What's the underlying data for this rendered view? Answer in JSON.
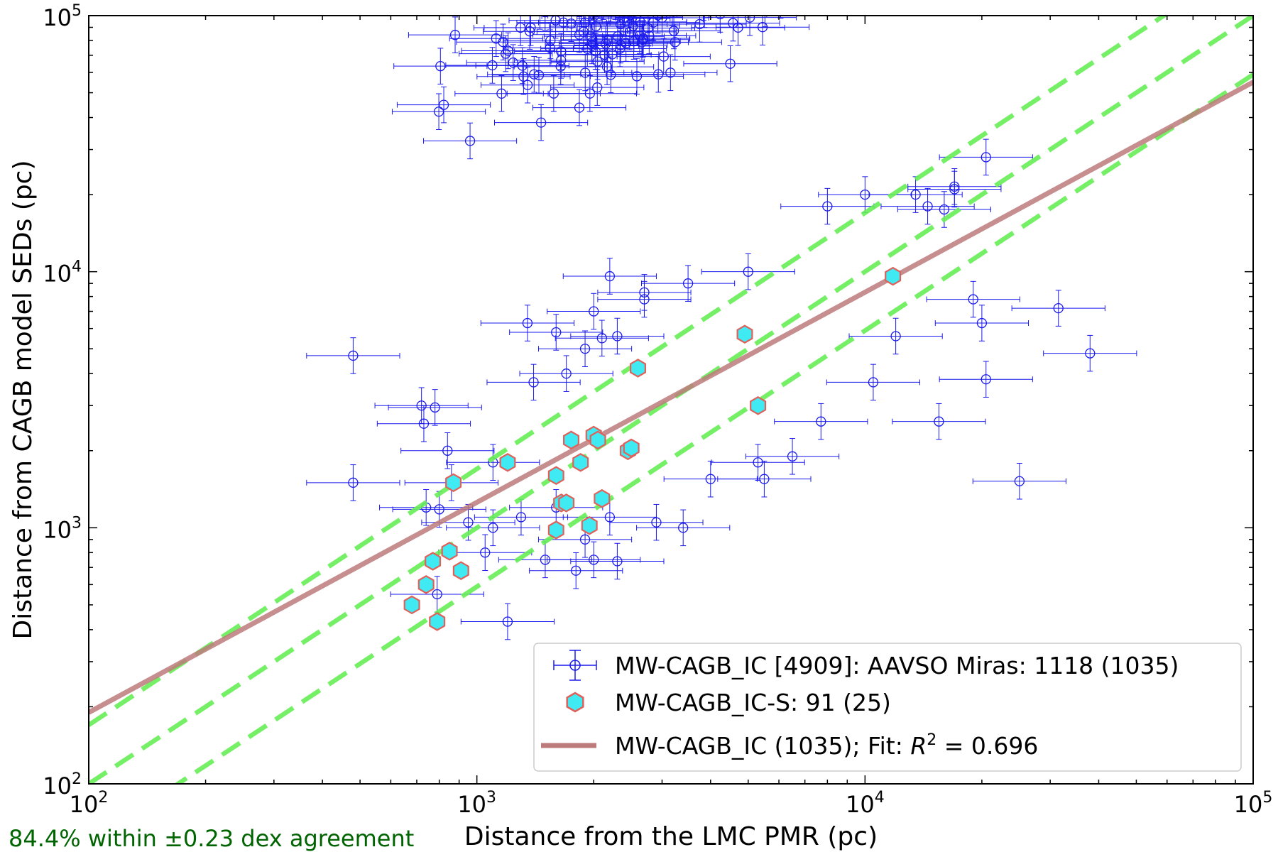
{
  "chart_data": {
    "type": "scatter",
    "xscale": "log",
    "yscale": "log",
    "xlim": [
      100,
      100000
    ],
    "ylim": [
      100,
      100000
    ],
    "xlabel": "Distance from the LMC PMR (pc)",
    "ylabel": "Distance from CAGB model SEDs (pc)",
    "xticks": [
      100,
      1000,
      10000,
      100000
    ],
    "yticks": [
      100,
      1000,
      10000,
      100000
    ],
    "tick_labels": [
      {
        "base": "10",
        "exp": "2"
      },
      {
        "base": "10",
        "exp": "3"
      },
      {
        "base": "10",
        "exp": "4"
      },
      {
        "base": "10",
        "exp": "5"
      }
    ],
    "stats_text": "84.4% within ±0.23 dex agreement",
    "dex_band": 0.23,
    "legend_position": "lower right",
    "legend": [
      {
        "kind": "errorbar",
        "label": "MW-CAGB_IC [4909]: AAVSO Miras: 1118 (1035)"
      },
      {
        "kind": "hexagon",
        "label": "MW-CAGB_IC-S: 91 (25)"
      },
      {
        "kind": "line",
        "label_prefix": "MW-CAGB_IC (1035); Fit: ",
        "label_var": "R",
        "label_sup": "2",
        "label_suffix": " = 0.696"
      }
    ],
    "fit_line": {
      "name": "MW-CAGB_IC fit",
      "color": "#bc7a7a",
      "points": [
        [
          100,
          190
        ],
        [
          100000,
          55000
        ]
      ]
    },
    "reference_lines": {
      "color": "#66ee55",
      "offsets_dex": [
        0.23,
        0,
        -0.23
      ]
    },
    "colors": {
      "ic": "#1a1aee",
      "ics_fill": "#40eaf2",
      "ics_edge": "#e0605a",
      "fit": "#bc7a7a",
      "ref": "#66ee55",
      "stats": "#006400"
    },
    "series_ic_outliers": {
      "name": "MW-CAGB_IC outliers",
      "points": [
        [
          480,
          4700
        ],
        [
          720,
          3000
        ],
        [
          780,
          2950
        ],
        [
          730,
          2550
        ],
        [
          840,
          2000
        ],
        [
          480,
          1500
        ],
        [
          860,
          1500
        ],
        [
          740,
          1200
        ],
        [
          800,
          1180
        ],
        [
          790,
          550
        ],
        [
          1200,
          430
        ],
        [
          1350,
          6300
        ],
        [
          1400,
          3700
        ],
        [
          1700,
          4000
        ],
        [
          2200,
          9600
        ],
        [
          2700,
          8300
        ],
        [
          2000,
          7000
        ],
        [
          1900,
          5000
        ],
        [
          2100,
          5500
        ],
        [
          1600,
          5800
        ],
        [
          2300,
          5600
        ],
        [
          2700,
          7800
        ],
        [
          1800,
          680
        ],
        [
          2000,
          750
        ],
        [
          2300,
          740
        ],
        [
          1500,
          750
        ],
        [
          1300,
          1100
        ],
        [
          1100,
          1000
        ],
        [
          1900,
          900
        ],
        [
          2200,
          1100
        ],
        [
          2900,
          1050
        ],
        [
          3400,
          1000
        ],
        [
          4000,
          1550
        ],
        [
          5500,
          1550
        ],
        [
          5300,
          1800
        ],
        [
          6500,
          1900
        ],
        [
          7700,
          2600
        ],
        [
          10500,
          3700
        ],
        [
          12000,
          5600
        ],
        [
          15500,
          2600
        ],
        [
          20500,
          3800
        ],
        [
          20000,
          6300
        ],
        [
          19000,
          7800
        ],
        [
          31500,
          7200
        ],
        [
          38000,
          4800
        ],
        [
          25000,
          1520
        ],
        [
          20500,
          28000
        ],
        [
          17000,
          21000
        ],
        [
          17000,
          21500
        ],
        [
          14500,
          18000
        ],
        [
          16000,
          17500
        ],
        [
          13500,
          20000
        ],
        [
          10000,
          20000
        ],
        [
          8000,
          18000
        ],
        [
          5000,
          10000
        ],
        [
          3500,
          9000
        ],
        [
          1100,
          1800
        ],
        [
          950,
          1050
        ],
        [
          1050,
          800
        ],
        [
          1600,
          1200
        ]
      ]
    },
    "series_ics": {
      "name": "MW-CAGB_IC-S",
      "points": [
        [
          11800,
          9600
        ],
        [
          4900,
          5700
        ],
        [
          5300,
          3000
        ],
        [
          2600,
          4200
        ],
        [
          1750,
          2200
        ],
        [
          2000,
          2300
        ],
        [
          2050,
          2200
        ],
        [
          2450,
          2000
        ],
        [
          2500,
          2050
        ],
        [
          1200,
          1800
        ],
        [
          1850,
          1800
        ],
        [
          1600,
          1600
        ],
        [
          870,
          1500
        ],
        [
          2100,
          1300
        ],
        [
          1650,
          1250
        ],
        [
          1700,
          1250
        ],
        [
          1600,
          980
        ],
        [
          1950,
          1020
        ],
        [
          850,
          810
        ],
        [
          770,
          740
        ],
        [
          910,
          680
        ],
        [
          740,
          600
        ],
        [
          680,
          500
        ],
        [
          790,
          430
        ]
      ]
    }
  }
}
